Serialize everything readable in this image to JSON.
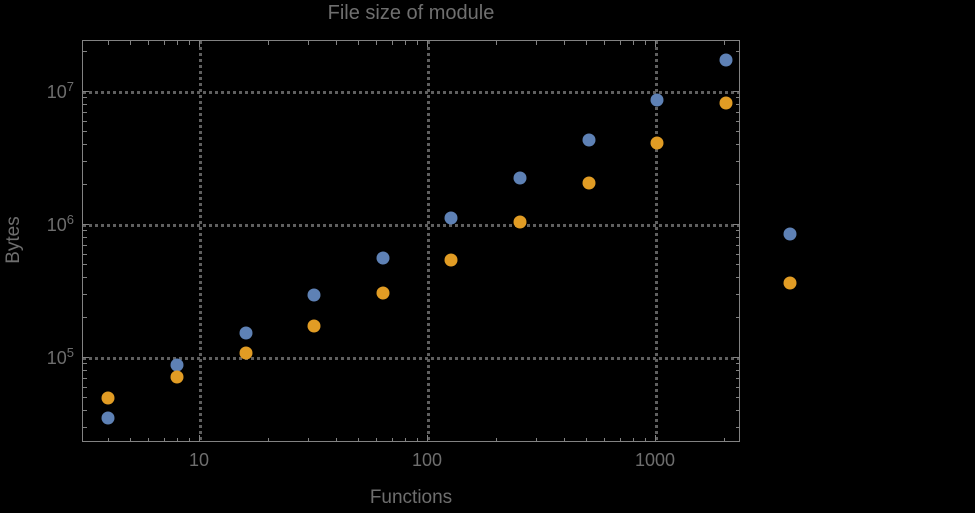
{
  "chart_data": {
    "type": "scatter",
    "title": "File size of module",
    "xlabel": "Functions",
    "ylabel": "Bytes",
    "x_scale": "log",
    "y_scale": "log",
    "xlim": [
      3.07,
      2360
    ],
    "ylim": [
      23000,
      24200000
    ],
    "grid": "dotted gray lines at decade ticks, on",
    "legend_position": "none",
    "frame": true,
    "background_color": "#000000",
    "text_color": "#6e6e6e",
    "frame_color": "#828282",
    "grid_color": "#5f5f5f",
    "x_ticks": [
      {
        "value": 10,
        "label": "10"
      },
      {
        "value": 100,
        "label": "100"
      },
      {
        "value": 1000,
        "label": "1000"
      }
    ],
    "y_ticks": [
      {
        "value": 100000,
        "label_base": "10",
        "label_exp": "5"
      },
      {
        "value": 1000000,
        "label_base": "10",
        "label_exp": "6"
      },
      {
        "value": 10000000,
        "label_base": "10",
        "label_exp": "7"
      }
    ],
    "series": [
      {
        "name": "blue-series",
        "color": "#5E81B5",
        "points": [
          [
            4,
            35000
          ],
          [
            8,
            87000
          ],
          [
            16,
            151000
          ],
          [
            32,
            292000
          ],
          [
            64,
            555000
          ],
          [
            128,
            1100000
          ],
          [
            256,
            2200000
          ],
          [
            512,
            4300000
          ],
          [
            1024,
            8500000
          ],
          [
            2048,
            17000000
          ],
          [
            3900,
            840000
          ]
        ]
      },
      {
        "name": "orange-series",
        "color": "#E19C24",
        "points": [
          [
            4,
            49000
          ],
          [
            8,
            71000
          ],
          [
            16,
            107000
          ],
          [
            32,
            171000
          ],
          [
            64,
            303000
          ],
          [
            128,
            536000
          ],
          [
            256,
            1040000
          ],
          [
            512,
            2030000
          ],
          [
            1024,
            4040000
          ],
          [
            2048,
            8100000
          ],
          [
            3900,
            360000
          ]
        ]
      }
    ]
  }
}
